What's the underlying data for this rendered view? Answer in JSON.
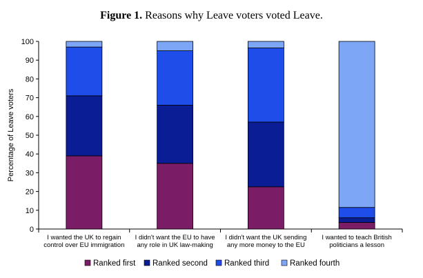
{
  "chart_data": {
    "type": "bar",
    "stacked": true,
    "title_bold": "Figure 1.",
    "title_rest": " Reasons why Leave voters voted Leave.",
    "ylabel": "Percentage of Leave voters",
    "ylim": [
      0,
      100
    ],
    "yticks": [
      "0",
      "10",
      "20",
      "30",
      "40",
      "50",
      "60",
      "70",
      "80",
      "90",
      "100"
    ],
    "grid": false,
    "legend_position": "bottom",
    "categories": [
      [
        "I wanted the UK to regain",
        "control over EU immigration"
      ],
      [
        "I didn't want the EU to have",
        "any role in UK law-making"
      ],
      [
        "I didn't want the UK sending",
        "any more money to the EU"
      ],
      [
        "I wanted to teach British",
        "politicians a lesson"
      ]
    ],
    "series": [
      {
        "name": "Ranked first",
        "color": "#7b1d66",
        "values": [
          39,
          35,
          22.5,
          3.5
        ]
      },
      {
        "name": "Ranked second",
        "color": "#0b1d94",
        "values": [
          32,
          31,
          34.5,
          2.5
        ]
      },
      {
        "name": "Ranked third",
        "color": "#1e4dea",
        "values": [
          26,
          29,
          39.5,
          5.5
        ]
      },
      {
        "name": "Ranked fourth",
        "color": "#7ea6f6",
        "values": [
          3,
          5,
          3.5,
          88.5
        ]
      }
    ]
  }
}
